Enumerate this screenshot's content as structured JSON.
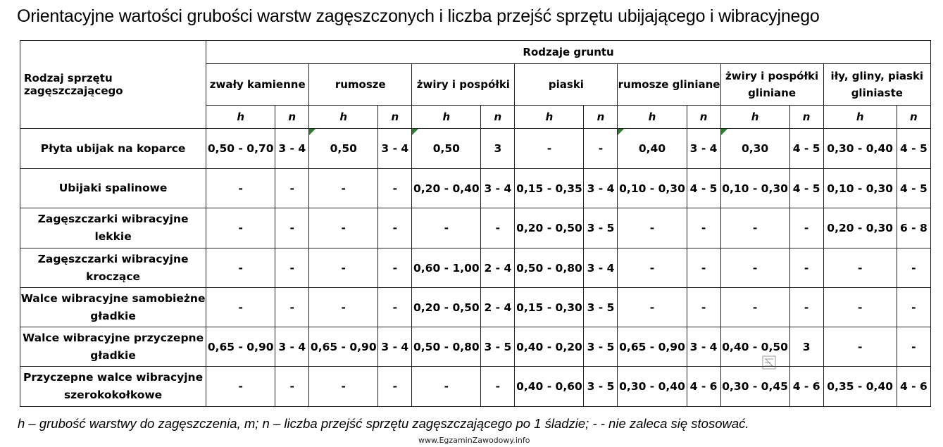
{
  "title": "Orientacyjne wartości grubości warstw zagęszczonych i liczba przejść sprzętu ubijającego i wibracyjnego",
  "table": {
    "corner_label": "Rodzaj sprzętu zagęszczającego",
    "super_header": "Rodzaje gruntu",
    "soil_types": [
      "zwały kamienne",
      "rumosze",
      "żwiry i pospółki",
      "piaski",
      "rumosze gliniane",
      "żwiry i pospółki gliniane",
      "iły, gliny, piaski gliniaste"
    ],
    "h_label": "h",
    "n_label": "n",
    "rows": [
      {
        "label": "Płyta ubijak na koparce",
        "cells": [
          "0,50 - 0,70",
          "3 - 4",
          "0,50",
          "3 - 4",
          "0,50",
          "3",
          "-",
          "-",
          "0,40",
          "3 - 4",
          "0,30",
          "4 - 5",
          "0,30 - 0,40",
          "4 - 5"
        ]
      },
      {
        "label": "Ubijaki spalinowe",
        "cells": [
          "-",
          "-",
          "-",
          "-",
          "0,20 - 0,40",
          "3 - 4",
          "0,15 - 0,35",
          "3 - 4",
          "0,10 - 0,30",
          "4 - 5",
          "0,10 - 0,30",
          "4 - 5",
          "0,10 - 0,30",
          "4 - 5"
        ]
      },
      {
        "label": "Zagęszczarki wibracyjne lekkie",
        "cells": [
          "-",
          "-",
          "-",
          "-",
          "-",
          "-",
          "0,20 - 0,50",
          "3 - 5",
          "-",
          "-",
          "-",
          "-",
          "0,20 - 0,30",
          "6 - 8"
        ]
      },
      {
        "label": "Zagęszczarki wibracyjne kroczące",
        "cells": [
          "-",
          "-",
          "-",
          "-",
          "0,60 - 1,00",
          "2 - 4",
          "0,50 - 0,80",
          "3 - 4",
          "-",
          "-",
          "-",
          "-",
          "-",
          "-"
        ]
      },
      {
        "label": "Walce wibracyjne samobieżne gładkie",
        "cells": [
          "-",
          "-",
          "-",
          "-",
          "0,20 - 0,50",
          "2 - 4",
          "0,15 - 0,30",
          "3 - 5",
          "-",
          "-",
          "-",
          "-",
          "-",
          "-"
        ]
      },
      {
        "label": "Walce wibracyjne przyczepne gładkie",
        "cells": [
          "0,65 - 0,90",
          "3 - 4",
          "0,65 - 0,90",
          "3 - 4",
          "0,50 - 0,80",
          "3 - 5",
          "0,40 - 0,20",
          "3 - 5",
          "0,65 - 0,90",
          "3 - 4",
          "0,40 - 0,50",
          "3",
          "-",
          "-"
        ]
      },
      {
        "label": "Przyczepne walce wibracyjne szerokokołkowe",
        "cells": [
          "-",
          "-",
          "-",
          "-",
          "-",
          "-",
          "0,40 - 0,60",
          "3 - 5",
          "0,30 - 0,40",
          "4 - 6",
          "0,30 - 0,45",
          "4 - 6",
          "0,35 - 0,40",
          "4 - 6"
        ]
      }
    ]
  },
  "footnote": "h – grubość warstwy do zagęszczenia, m; n – liczba przejść sprzętu zagęszczającego po 1 śladzie; - - nie zaleca się stosować.",
  "watermark": "www.EgzaminZawodowy.info",
  "colors": {
    "cell_marker": "#2e7d32",
    "border": "#222222"
  }
}
